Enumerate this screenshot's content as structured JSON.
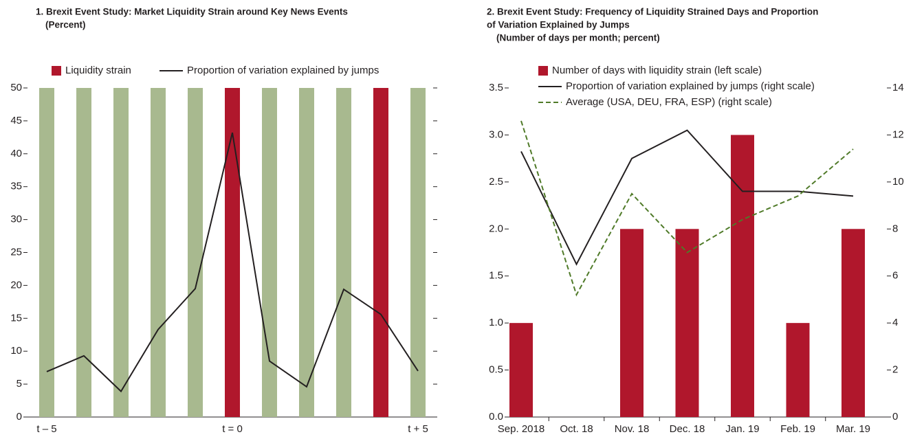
{
  "chart_data": [
    {
      "type": "bar",
      "title": [
        "1. Brexit Event Study: Market Liquidity Strain around Key News Events"
      ],
      "subtitle": "(Percent)",
      "categories": [
        "t – 5",
        null,
        null,
        null,
        null,
        "t = 0",
        null,
        null,
        null,
        null,
        "t + 5"
      ],
      "ylim": [
        0,
        50
      ],
      "yticks": [
        0,
        5,
        10,
        15,
        20,
        25,
        30,
        35,
        40,
        45,
        50
      ],
      "series": [
        {
          "name": "Liquidity strain",
          "type": "bar",
          "color": "#b0172c",
          "colors": [
            "#a8b98f",
            "#a8b98f",
            "#a8b98f",
            "#a8b98f",
            "#a8b98f",
            "#b0172c",
            "#a8b98f",
            "#a8b98f",
            "#a8b98f",
            "#b0172c",
            "#a8b98f"
          ],
          "values": [
            50,
            50,
            50,
            50,
            50,
            50,
            50,
            50,
            50,
            50,
            50
          ]
        },
        {
          "name": "Proportion of variation explained by jumps",
          "type": "line",
          "color": "#231f20",
          "values": [
            6.9,
            9.3,
            3.9,
            13.3,
            19.5,
            43.2,
            8.5,
            4.6,
            19.4,
            15.6,
            7.0
          ]
        }
      ]
    },
    {
      "type": "bar",
      "title": [
        "2. Brexit Event Study: Frequency of Liquidity Strained Days and Proportion",
        "of Variation Explained by Jumps"
      ],
      "subtitle": "(Number of days per month; percent)",
      "categories": [
        "Sep. 2018",
        "Oct. 18",
        "Nov. 18",
        "Dec. 18",
        "Jan. 19",
        "Feb. 19",
        "Mar. 19"
      ],
      "ylim": [
        0,
        3.5
      ],
      "yticks": [
        {
          "value": 0,
          "label": "0.0"
        },
        0.5,
        {
          "value": 1,
          "label": "1.0"
        },
        1.5,
        {
          "value": 2,
          "label": "2.0"
        },
        2.5,
        {
          "value": 3,
          "label": "3.0"
        },
        3.5
      ],
      "y2lim": [
        0,
        14
      ],
      "y2ticks": [
        0,
        2,
        4,
        6,
        8,
        10,
        12,
        14
      ],
      "series": [
        {
          "name": "Number of days with liquidity strain (left scale)",
          "type": "bar",
          "color": "#b0172c",
          "values": [
            1,
            0,
            2,
            2,
            3,
            1,
            2
          ]
        },
        {
          "name": "Proportion of variation explained by jumps (right scale)",
          "type": "line",
          "axis": "y2",
          "color": "#231f20",
          "values": [
            11.3,
            6.5,
            11.0,
            12.2,
            9.6,
            9.6,
            9.4
          ]
        },
        {
          "name": "Average (USA, DEU, FRA, ESP) (right scale)",
          "type": "line",
          "axis": "y2",
          "color": "#4f7a28",
          "dash": true,
          "values": [
            12.6,
            5.2,
            9.5,
            7.0,
            8.4,
            9.4,
            11.4
          ]
        }
      ]
    }
  ]
}
